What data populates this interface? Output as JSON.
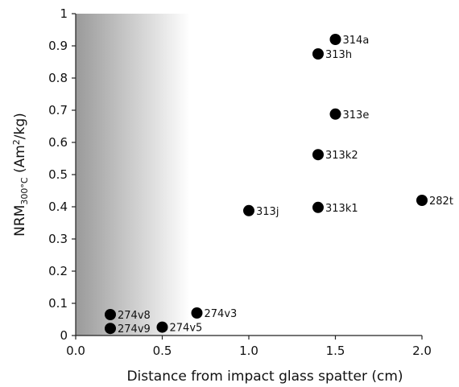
{
  "chart_data": {
    "type": "scatter",
    "title": "",
    "xlabel": "Distance from impact glass spatter (cm)",
    "ylabel": {
      "base": "NRM",
      "subscript": "300°C",
      "unit_open": " (Am",
      "superscript": "2",
      "unit_close": "/kg)"
    },
    "xlim": [
      0,
      2.0
    ],
    "ylim": [
      0,
      1
    ],
    "x_ticks": [
      "0.0",
      "0.5",
      "1.0",
      "1.5",
      "2.0"
    ],
    "y_ticks": [
      "0",
      "0.1",
      "0.2",
      "0.3",
      "0.4",
      "0.5",
      "0.6",
      "0.7",
      "0.8",
      "0.9",
      "1"
    ],
    "grid": false,
    "legend": "none",
    "shaded_region": {
      "x_start": 0,
      "x_end": 0.66,
      "gradient_from": "#9a9a9a",
      "gradient_to": "#ffffff"
    },
    "marker_color": "#000000",
    "points": [
      {
        "x": 1.5,
        "y": 0.92,
        "label": "314a"
      },
      {
        "x": 1.4,
        "y": 0.875,
        "label": "313h"
      },
      {
        "x": 1.5,
        "y": 0.688,
        "label": "313e"
      },
      {
        "x": 1.4,
        "y": 0.562,
        "label": "313k2"
      },
      {
        "x": 2.0,
        "y": 0.42,
        "label": "282t"
      },
      {
        "x": 1.4,
        "y": 0.398,
        "label": "313k1"
      },
      {
        "x": 1.0,
        "y": 0.388,
        "label": "313j"
      },
      {
        "x": 0.7,
        "y": 0.07,
        "label": "274v3"
      },
      {
        "x": 0.2,
        "y": 0.065,
        "label": "274v8"
      },
      {
        "x": 0.5,
        "y": 0.026,
        "label": "274v5"
      },
      {
        "x": 0.2,
        "y": 0.022,
        "label": "274v9"
      }
    ]
  }
}
